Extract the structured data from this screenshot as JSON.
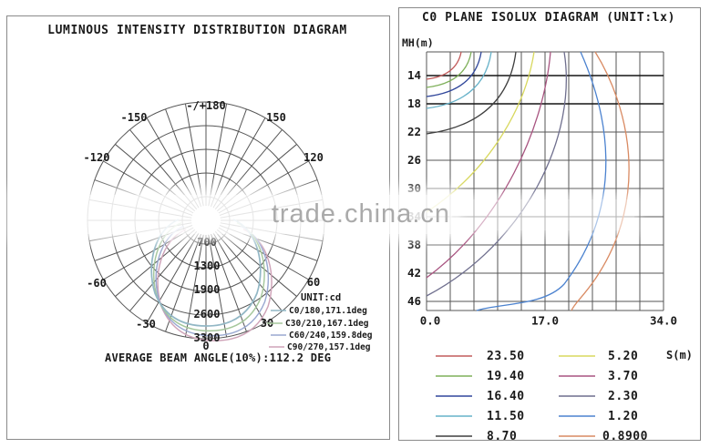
{
  "watermark": {
    "text": "trade.china.cn"
  },
  "left": {
    "title": "LUMINOUS INTENSITY DISTRIBUTION DIAGRAM",
    "polar": {
      "angle_labels": [
        "-/+180",
        "-150",
        "150",
        "-120",
        "120",
        "-60",
        "60",
        "-30",
        "30",
        "0"
      ],
      "radial_labels": [
        "700",
        "1300",
        "1900",
        "2600",
        "3300"
      ]
    },
    "legend": {
      "unit": "UNIT:cd",
      "curves": [
        {
          "label": "C0/180,171.1deg",
          "color": "#92b7c5"
        },
        {
          "label": "C30/210,167.1deg",
          "color": "#a5c79b"
        },
        {
          "label": "C60/240,159.8deg",
          "color": "#9aa9d1"
        },
        {
          "label": "C90/270,157.1deg",
          "color": "#cfa3b8"
        }
      ]
    },
    "caption": "AVERAGE BEAM ANGLE(10%):112.2 DEG"
  },
  "right": {
    "title": "C0 PLANE ISOLUX DIAGRAM (UNIT:lx)",
    "y_axis_label": "MH(m)",
    "x_axis_label": "S(m)",
    "y_ticks": [
      "14",
      "18",
      "22",
      "26",
      "30",
      "34",
      "38",
      "42",
      "46"
    ],
    "x_ticks": [
      "0.0",
      "17.0",
      "34.0"
    ],
    "legend": [
      {
        "value": "23.50",
        "color": "#c25b5b"
      },
      {
        "value": "19.40",
        "color": "#7fb05a"
      },
      {
        "value": "16.40",
        "color": "#31479b"
      },
      {
        "value": "11.50",
        "color": "#67b2c9"
      },
      {
        "value": "8.70",
        "color": "#3f3f3f"
      },
      {
        "value": "5.20",
        "color": "#d8d85e"
      },
      {
        "value": "3.70",
        "color": "#a85480"
      },
      {
        "value": "2.30",
        "color": "#6f6f8e"
      },
      {
        "value": "1.20",
        "color": "#4b82cf"
      },
      {
        "value": "0.8900",
        "color": "#d98a62"
      }
    ]
  },
  "chart_data": [
    {
      "type": "line",
      "variant": "polar-intensity",
      "title": "LUMINOUS INTENSITY DISTRIBUTION DIAGRAM",
      "unit": "cd",
      "radial_ticks": [
        700,
        1300,
        1900,
        2600,
        3300
      ],
      "angle_tick_labels_deg": [
        -180,
        -150,
        -120,
        -60,
        -30,
        0,
        30,
        60,
        120,
        150,
        180
      ],
      "angle_grid_step_deg": 10,
      "series": [
        {
          "name": "C0/180",
          "beam_angle_deg": 171.1
        },
        {
          "name": "C30/210",
          "beam_angle_deg": 167.1
        },
        {
          "name": "C60/240",
          "beam_angle_deg": 159.8
        },
        {
          "name": "C90/270",
          "beam_angle_deg": 157.1
        }
      ],
      "peak_intensity_cd_approx": 2900,
      "annotation": "AVERAGE BEAM ANGLE(10%):112.2 DEG",
      "grid": true
    },
    {
      "type": "line",
      "variant": "isolux-contours",
      "title": "C0 PLANE ISOLUX DIAGRAM (UNIT:lx)",
      "xlabel": "S(m)",
      "ylabel": "MH(m)",
      "xlim": [
        0,
        34
      ],
      "x_ticks": [
        0.0,
        17.0,
        34.0
      ],
      "y_ticks": [
        14,
        18,
        22,
        26,
        30,
        34,
        38,
        42,
        46
      ],
      "contour_levels_lx": [
        23.5,
        19.4,
        16.4,
        11.5,
        8.7,
        5.2,
        3.7,
        2.3,
        1.2,
        0.89
      ],
      "legend_position": "bottom",
      "grid": true
    }
  ]
}
